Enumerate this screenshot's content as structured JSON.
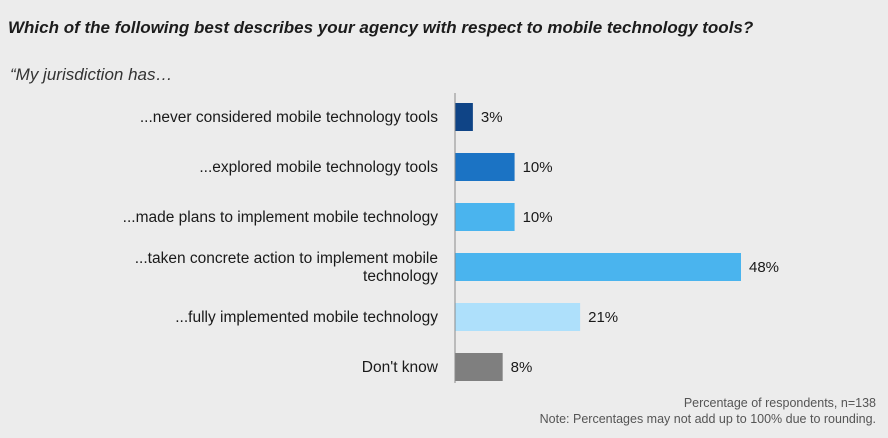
{
  "title": "Which of the following best describes your agency with respect to mobile technology tools?",
  "subtitle": "“My jurisdiction has…",
  "chart_data": {
    "type": "bar",
    "orientation": "horizontal",
    "categories": [
      [
        "...never considered mobile technology tools"
      ],
      [
        "...explored mobile technology tools"
      ],
      [
        "...made plans to implement mobile technology"
      ],
      [
        "...taken concrete action to implement mobile",
        "technology"
      ],
      [
        "...fully implemented mobile technology"
      ],
      [
        "Don't know"
      ]
    ],
    "values": [
      3,
      10,
      10,
      48,
      21,
      8
    ],
    "value_labels": [
      "3%",
      "10%",
      "10%",
      "48%",
      "21%",
      "8%"
    ],
    "colors": [
      "#0f4486",
      "#1b73c4",
      "#4ab4ee",
      "#4ab4ee",
      "#aee0fb",
      "#7f7f7f"
    ],
    "xlim": [
      0,
      48
    ],
    "grid": false,
    "legend": "none"
  },
  "footnotes": {
    "line1": "Percentage of respondents, n=138",
    "line2": "Note: Percentages may not add up to 100% due to rounding."
  }
}
